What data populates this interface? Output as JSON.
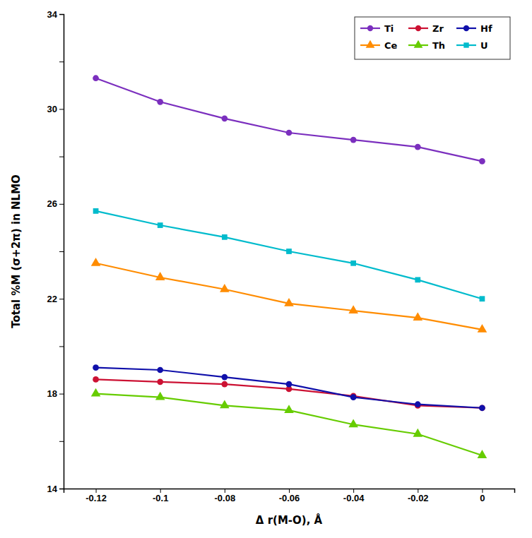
{
  "chart_data": {
    "type": "line",
    "xlabel": "Δ r(M-O), Å",
    "ylabel": "Total %M (σ+2π) in NLMO",
    "x": [
      -0.12,
      -0.1,
      -0.08,
      -0.06,
      -0.04,
      -0.02,
      0.0
    ],
    "series": [
      {
        "name": "Ti",
        "color": "#7B2FBE",
        "marker": "circle",
        "values": [
          31.3,
          30.3,
          29.6,
          29.0,
          28.7,
          28.4,
          27.8
        ]
      },
      {
        "name": "Zr",
        "color": "#CC1133",
        "marker": "circle",
        "values": [
          18.6,
          18.5,
          18.4,
          18.2,
          17.9,
          17.5,
          17.4
        ]
      },
      {
        "name": "Hf",
        "color": "#1010AA",
        "marker": "circle",
        "values": [
          19.1,
          19.0,
          18.7,
          18.4,
          17.85,
          17.55,
          17.4
        ]
      },
      {
        "name": "Ce",
        "color": "#FF8C00",
        "marker": "triangle",
        "values": [
          23.5,
          22.9,
          22.4,
          21.8,
          21.5,
          21.2,
          20.7
        ]
      },
      {
        "name": "Th",
        "color": "#66CC00",
        "marker": "triangle",
        "values": [
          18.0,
          17.85,
          17.5,
          17.3,
          16.7,
          16.3,
          15.4
        ]
      },
      {
        "name": "U",
        "color": "#00BBCC",
        "marker": "square",
        "values": [
          25.7,
          25.1,
          24.6,
          24.0,
          23.5,
          22.8,
          22.0
        ]
      }
    ],
    "xlim": [
      -0.13,
      0.01
    ],
    "ylim": [
      14,
      34
    ],
    "xticks": [
      -0.12,
      -0.1,
      -0.08,
      -0.06,
      -0.04,
      -0.02,
      0
    ],
    "yticks": [
      14,
      {
        "value": 16,
        "label": null
      },
      18,
      {
        "value": 20,
        "label": null
      },
      22,
      {
        "value": 24,
        "label": null
      },
      26,
      {
        "value": 28,
        "label": null
      },
      30,
      {
        "value": 32,
        "label": null
      },
      34
    ],
    "legend": "upper right",
    "grid": false
  }
}
